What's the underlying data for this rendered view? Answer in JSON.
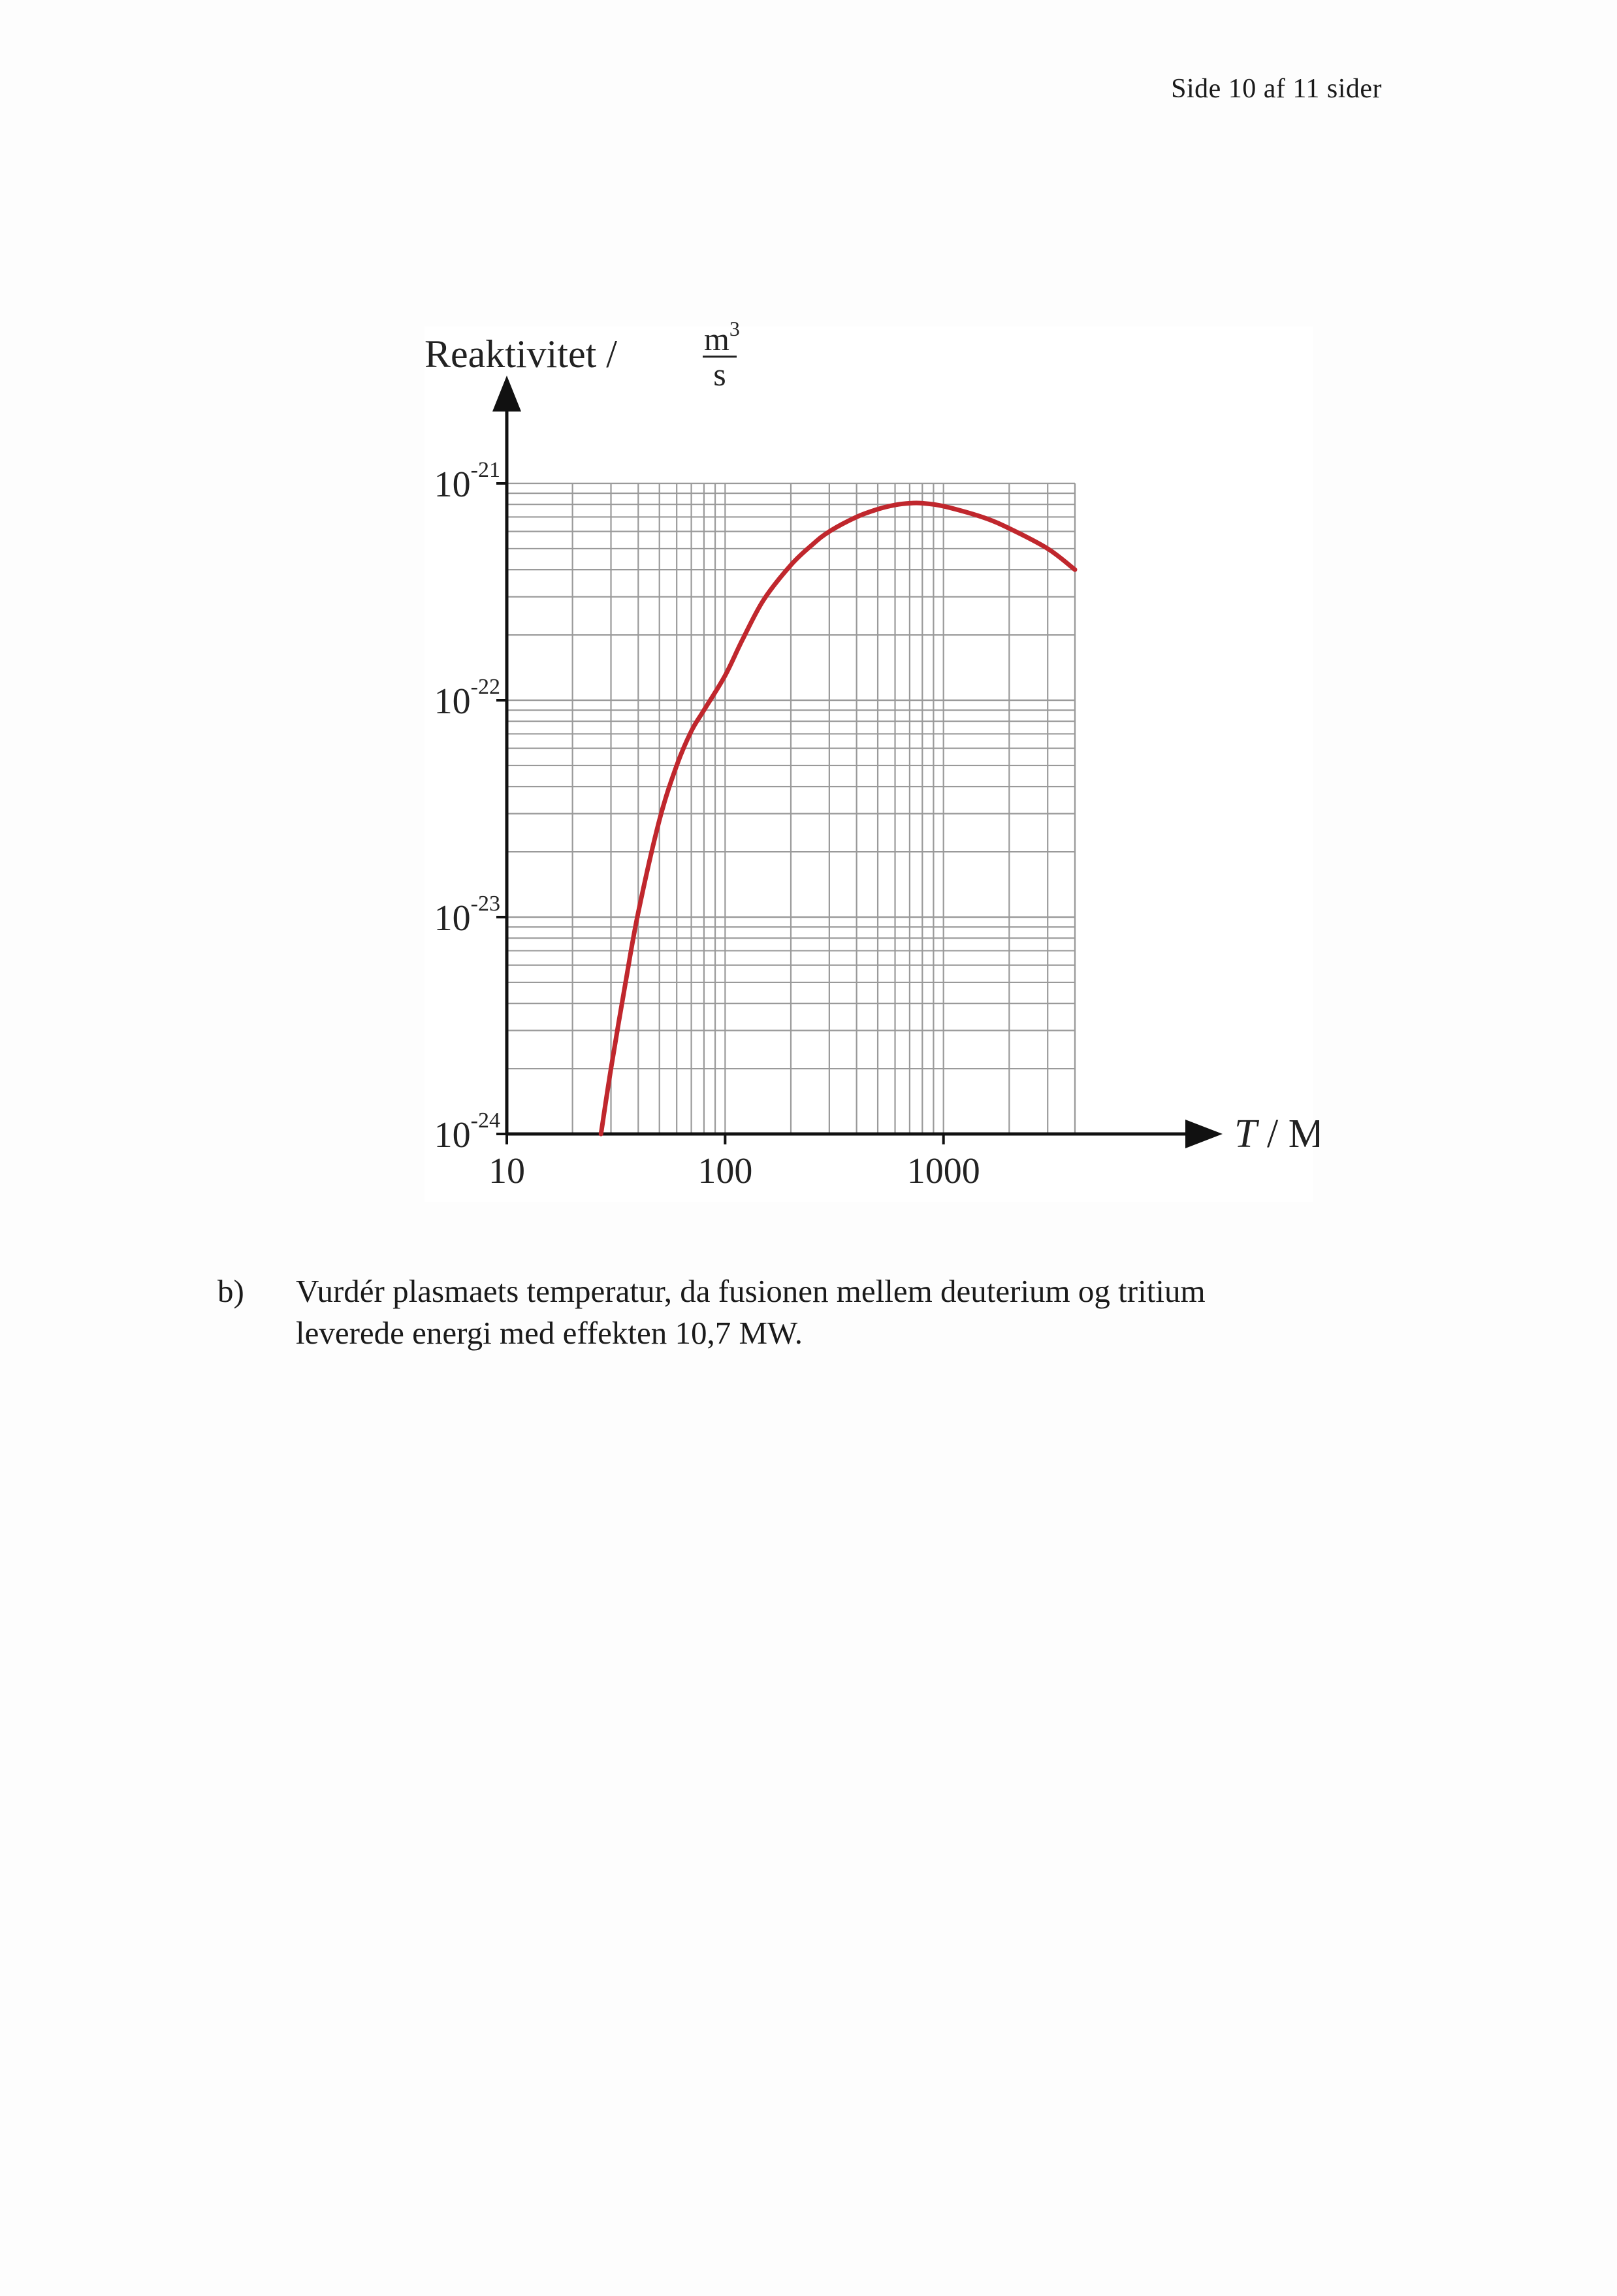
{
  "header": {
    "page_text": "Side 10 af 11 sider"
  },
  "chart_data": {
    "type": "line",
    "scale": {
      "x": "log",
      "y": "log"
    },
    "ylabel_text": "Reaktivitet /",
    "yunit_numerator": "m",
    "yunit_numerator_exp": "3",
    "yunit_denominator": "s",
    "xlabel_var": "T",
    "xlabel_unit": " / MK",
    "xlim": [
      10,
      4000
    ],
    "ylim": [
      1e-24,
      1e-21
    ],
    "x_ticks": [
      {
        "value": 10,
        "label": "10"
      },
      {
        "value": 100,
        "label": "100"
      },
      {
        "value": 1000,
        "label": "1000"
      }
    ],
    "y_ticks": [
      {
        "value": 1e-24,
        "base": "10",
        "exp": "-24"
      },
      {
        "value": 1e-23,
        "base": "10",
        "exp": "-23"
      },
      {
        "value": 1e-22,
        "base": "10",
        "exp": "-22"
      },
      {
        "value": 1e-21,
        "base": "10",
        "exp": "-21"
      }
    ],
    "grid": true,
    "series": [
      {
        "color": "#c0272d",
        "points": [
          [
            27,
            1e-24
          ],
          [
            30,
            2e-24
          ],
          [
            35,
            5e-24
          ],
          [
            40,
            1.05e-23
          ],
          [
            50,
            2.8e-23
          ],
          [
            60,
            5e-23
          ],
          [
            70,
            7.2e-23
          ],
          [
            80,
            9e-23
          ],
          [
            100,
            1.3e-22
          ],
          [
            120,
            1.9e-22
          ],
          [
            150,
            2.9e-22
          ],
          [
            200,
            4.2e-22
          ],
          [
            250,
            5.2e-22
          ],
          [
            300,
            6e-22
          ],
          [
            400,
            7e-22
          ],
          [
            500,
            7.6e-22
          ],
          [
            600,
            7.95e-22
          ],
          [
            700,
            8.1e-22
          ],
          [
            800,
            8.1e-22
          ],
          [
            1000,
            7.85e-22
          ],
          [
            1500,
            7e-22
          ],
          [
            2000,
            6.2e-22
          ],
          [
            3000,
            5e-22
          ],
          [
            4000,
            4e-22
          ]
        ]
      }
    ]
  },
  "question": {
    "label": "b)",
    "line1": "Vurdér plasmaets temperatur, da fusionen mellem deuterium og tritium",
    "line2": "leverede energi med effekten 10,7 MW."
  }
}
